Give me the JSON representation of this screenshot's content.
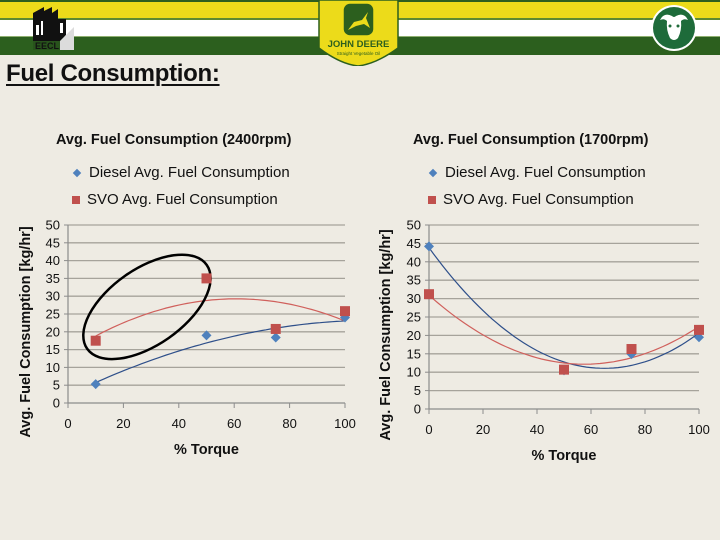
{
  "header": {
    "logos": [
      "EECL",
      "JOHN DEERE",
      "Straight Vegetable Oil",
      "CSU Ram"
    ],
    "colors": {
      "dark_green": "#2c5f1e",
      "yellow": "#ecdb1a",
      "white": "#ffffff"
    }
  },
  "page_title": "Fuel Consumption:",
  "chart_data": [
    {
      "type": "scatter",
      "title": "Avg. Fuel Consumption (2400rpm)",
      "xlabel": "% Torque",
      "ylabel": "Avg. Fuel Consumption [kg/hr]",
      "xlim": [
        0,
        100
      ],
      "ylim": [
        0,
        50
      ],
      "xticks": [
        "0",
        "20",
        "40",
        "60",
        "80",
        "100"
      ],
      "yticks": [
        "0",
        "5",
        "10",
        "15",
        "20",
        "25",
        "30",
        "35",
        "40",
        "45",
        "50"
      ],
      "grid": true,
      "legend_position": "top",
      "trendline": "polynomial order 2",
      "annotation": "ellipse around points at 10% and 50% torque",
      "series": [
        {
          "name": "Diesel Avg. Fuel Consumption",
          "color": "#4f81bd",
          "marker": "diamond",
          "x": [
            10,
            50,
            75,
            100
          ],
          "y": [
            5.3,
            19,
            18.4,
            24
          ]
        },
        {
          "name": "SVO Avg. Fuel Consumption",
          "color": "#c0504d",
          "marker": "square",
          "x": [
            10,
            50,
            75,
            100
          ],
          "y": [
            17.5,
            35,
            20.8,
            25.8
          ]
        }
      ]
    },
    {
      "type": "scatter",
      "title": "Avg. Fuel Consumption (1700rpm)",
      "xlabel": "% Torque",
      "ylabel": "Avg. Fuel Consumption [kg/hr]",
      "xlim": [
        0,
        100
      ],
      "ylim": [
        0,
        50
      ],
      "xticks": [
        "0",
        "20",
        "40",
        "60",
        "80",
        "100"
      ],
      "yticks": [
        "0",
        "5",
        "10",
        "15",
        "20",
        "25",
        "30",
        "35",
        "40",
        "45",
        "50"
      ],
      "grid": true,
      "legend_position": "top",
      "trendline": "polynomial order 2",
      "series": [
        {
          "name": "Diesel Avg. Fuel Consumption",
          "color": "#4f81bd",
          "marker": "diamond",
          "x": [
            0,
            50,
            75,
            100
          ],
          "y": [
            44.2,
            10.5,
            14.9,
            19.5
          ]
        },
        {
          "name": "SVO Avg. Fuel Consumption",
          "color": "#c0504d",
          "marker": "square",
          "x": [
            0,
            50,
            75,
            100
          ],
          "y": [
            31.2,
            10.7,
            16.3,
            21.5
          ]
        }
      ]
    }
  ]
}
